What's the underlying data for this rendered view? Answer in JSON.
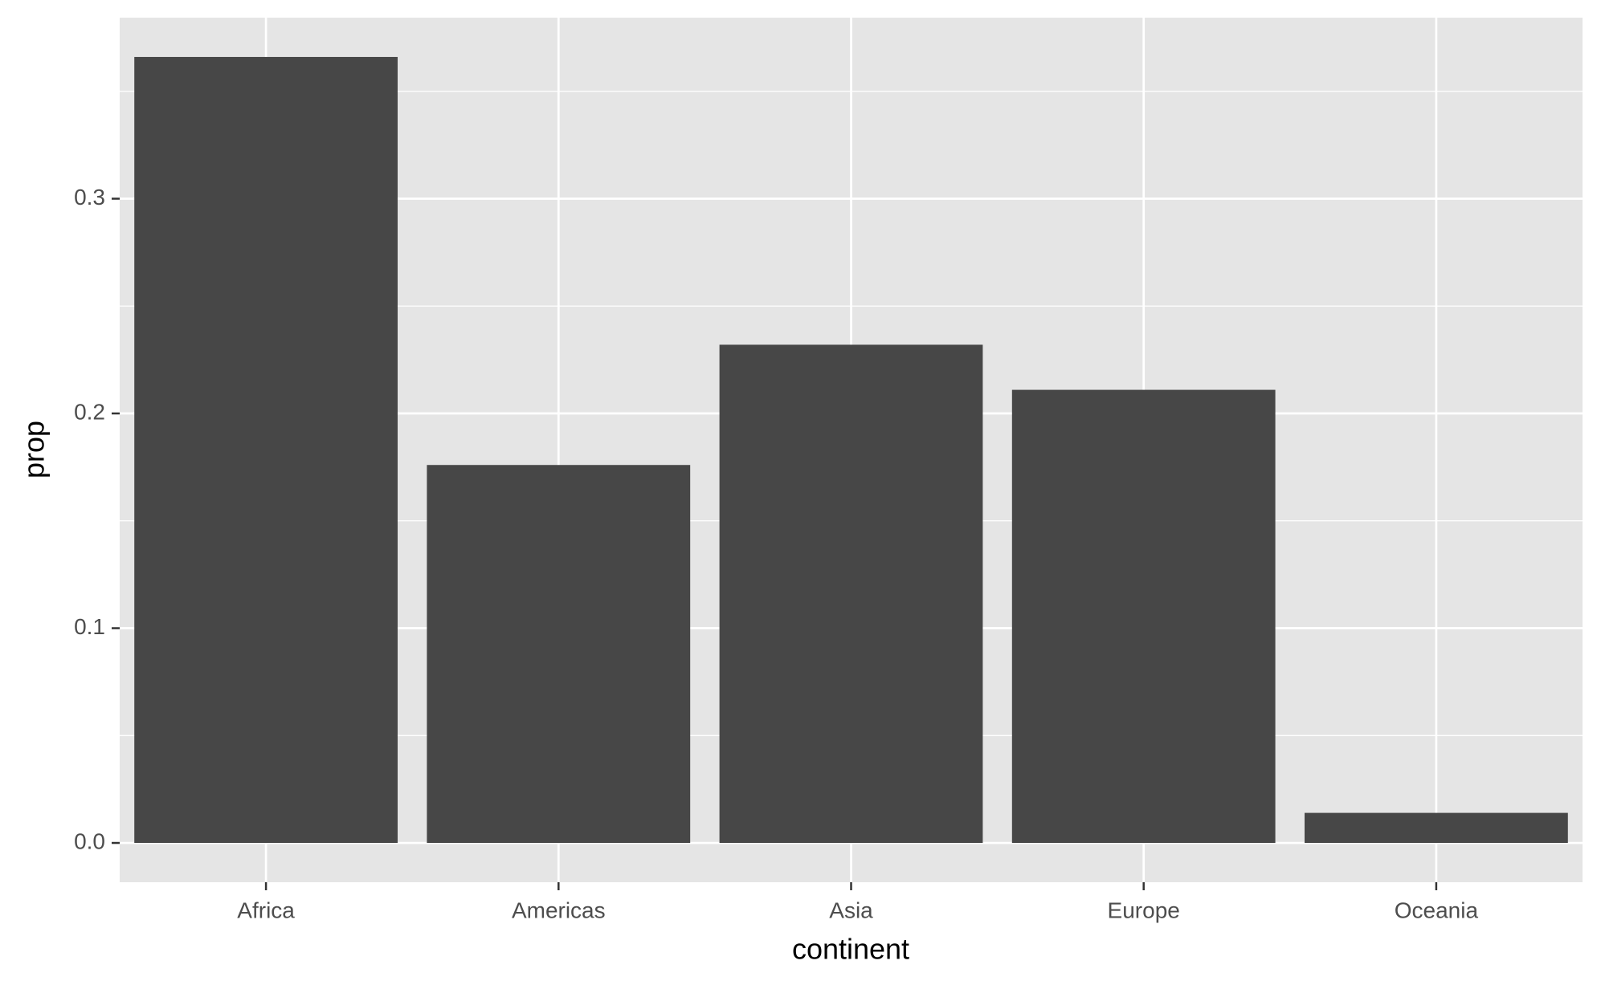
{
  "chart_data": {
    "type": "bar",
    "x_label": "continent",
    "y_label": "prop",
    "categories": [
      "Africa",
      "Americas",
      "Asia",
      "Europe",
      "Oceania"
    ],
    "values": [
      0.366,
      0.176,
      0.232,
      0.211,
      0.014
    ],
    "color": "#474747",
    "ylim": [
      -0.0183,
      0.3843
    ],
    "yticks": [
      {
        "value": 0,
        "label": "0.0"
      },
      0.1,
      0.2,
      0.3
    ],
    "y_minor_ticks": [
      0.05,
      0.15,
      0.25,
      0.35
    ],
    "grid": true
  }
}
